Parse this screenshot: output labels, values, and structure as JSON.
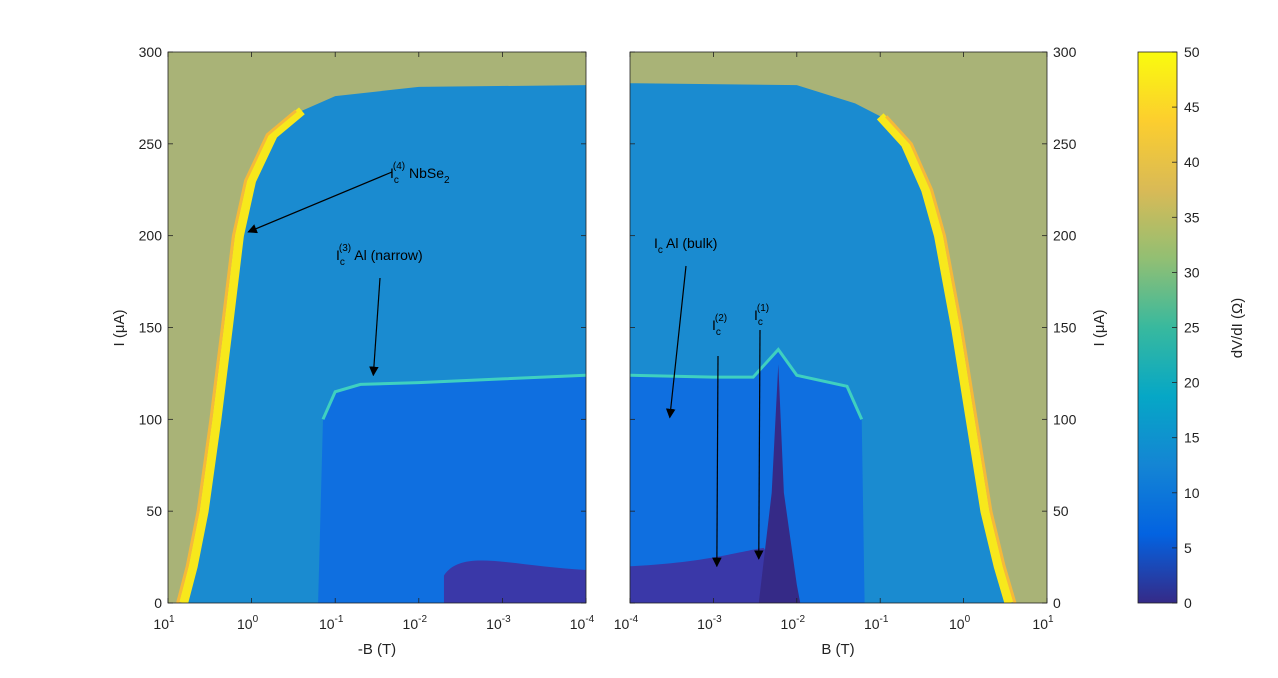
{
  "chart_data": [
    {
      "type": "heatmap",
      "panel": "left",
      "xlabel": "-B (T)",
      "ylabel": "I (μA)",
      "xscale": "log",
      "x_reversed": true,
      "xlim": [
        10,
        0.0001
      ],
      "ylim": [
        0,
        300
      ],
      "xticks": [
        10,
        1,
        0.1,
        0.01,
        0.001,
        0.0001
      ],
      "xtick_labels": [
        {
          "base": "10",
          "exp": "1"
        },
        {
          "base": "10",
          "exp": "0"
        },
        {
          "base": "10",
          "exp": "-1"
        },
        {
          "base": "10",
          "exp": "-2"
        },
        {
          "base": "10",
          "exp": "-3"
        },
        {
          "base": "10",
          "exp": "-4"
        }
      ],
      "yticks": [
        0,
        50,
        100,
        150,
        200,
        250,
        300
      ],
      "ytick_labels": [
        "0",
        "50",
        "100",
        "150",
        "200",
        "250",
        "300"
      ],
      "critical_currents": {
        "Ic4_NbSe2_edge": [
          {
            "B": 6.5,
            "I": 0
          },
          {
            "B": 5.0,
            "I": 20
          },
          {
            "B": 3.7,
            "I": 50
          },
          {
            "B": 2.6,
            "I": 100
          },
          {
            "B": 1.9,
            "I": 150
          },
          {
            "B": 1.4,
            "I": 200
          },
          {
            "B": 1.0,
            "I": 230
          },
          {
            "B": 0.55,
            "I": 255
          },
          {
            "B": 0.25,
            "I": 268
          },
          {
            "B": 0.1,
            "I": 276
          },
          {
            "B": 0.01,
            "I": 281
          },
          {
            "B": 0.0001,
            "I": 282
          }
        ],
        "Ic3_Al_narrow": [
          {
            "B": 0.16,
            "I": 0
          },
          {
            "B": 0.14,
            "I": 100
          },
          {
            "B": 0.1,
            "I": 115
          },
          {
            "B": 0.05,
            "I": 119
          },
          {
            "B": 0.01,
            "I": 120
          },
          {
            "B": 0.001,
            "I": 122
          },
          {
            "B": 0.0001,
            "I": 124
          }
        ]
      },
      "annotations": [
        {
          "main": "I",
          "sub": "c",
          "sup": "(4)",
          "rest": " NbSe",
          "sub2": "2",
          "arrow_to": {
            "B": 1.1,
            "I": 202
          }
        },
        {
          "main": "I",
          "sub": "c",
          "sup": "(3)",
          "rest": " Al (narrow)",
          "arrow_to": {
            "B": 0.035,
            "I": 124
          }
        }
      ]
    },
    {
      "type": "heatmap",
      "panel": "right",
      "xlabel": "B (T)",
      "ylabel": "I (μA)",
      "xscale": "log",
      "xlim": [
        0.0001,
        10
      ],
      "ylim": [
        0,
        300
      ],
      "xticks": [
        0.0001,
        0.001,
        0.01,
        0.1,
        1,
        10
      ],
      "xtick_labels": [
        {
          "base": "10",
          "exp": "-4"
        },
        {
          "base": "10",
          "exp": "-3"
        },
        {
          "base": "10",
          "exp": "-2"
        },
        {
          "base": "10",
          "exp": "-1"
        },
        {
          "base": "10",
          "exp": "0"
        },
        {
          "base": "10",
          "exp": "1"
        }
      ],
      "yticks": [
        0,
        50,
        100,
        150,
        200,
        250,
        300
      ],
      "ytick_labels": [
        "0",
        "50",
        "100",
        "150",
        "200",
        "250",
        "300"
      ],
      "critical_currents": {
        "Ic4_NbSe2_edge": [
          {
            "B": 0.0001,
            "I": 283
          },
          {
            "B": 0.01,
            "I": 282
          },
          {
            "B": 0.05,
            "I": 272
          },
          {
            "B": 0.1,
            "I": 265
          },
          {
            "B": 0.2,
            "I": 250
          },
          {
            "B": 0.35,
            "I": 225
          },
          {
            "B": 0.5,
            "I": 200
          },
          {
            "B": 0.8,
            "I": 150
          },
          {
            "B": 1.2,
            "I": 100
          },
          {
            "B": 1.8,
            "I": 50
          },
          {
            "B": 2.6,
            "I": 20
          },
          {
            "B": 3.5,
            "I": 0
          }
        ],
        "Ic3_Al_narrow": [
          {
            "B": 0.0001,
            "I": 124
          },
          {
            "B": 0.001,
            "I": 123
          },
          {
            "B": 0.003,
            "I": 123
          },
          {
            "B": 0.006,
            "I": 138
          },
          {
            "B": 0.01,
            "I": 124
          },
          {
            "B": 0.04,
            "I": 118
          },
          {
            "B": 0.06,
            "I": 100
          },
          {
            "B": 0.065,
            "I": 0
          }
        ]
      },
      "annotations": [
        {
          "main": "I",
          "sub": "c",
          "rest": " Al (bulk)",
          "arrow_to": {
            "B": 0.0003,
            "I": 101
          }
        },
        {
          "main": "I",
          "sub": "c",
          "sup": "(2)",
          "rest": "",
          "arrow_to": {
            "B": 0.0011,
            "I": 20
          }
        },
        {
          "main": "I",
          "sub": "c",
          "sup": "(1)",
          "rest": "",
          "arrow_to": {
            "B": 0.0035,
            "I": 24
          }
        }
      ]
    }
  ],
  "colorbar": {
    "label": "dV/dI (Ω)",
    "min": 0,
    "max": 50,
    "ticks": [
      "0",
      "5",
      "10",
      "15",
      "20",
      "25",
      "30",
      "35",
      "40",
      "45",
      "50"
    ],
    "colormap": "parula",
    "stops": [
      "#352a87",
      "#0363e1",
      "#1485d4",
      "#06a7c6",
      "#38b99e",
      "#92bf73",
      "#d9ba56",
      "#fcce2e",
      "#f9fb0e"
    ]
  }
}
